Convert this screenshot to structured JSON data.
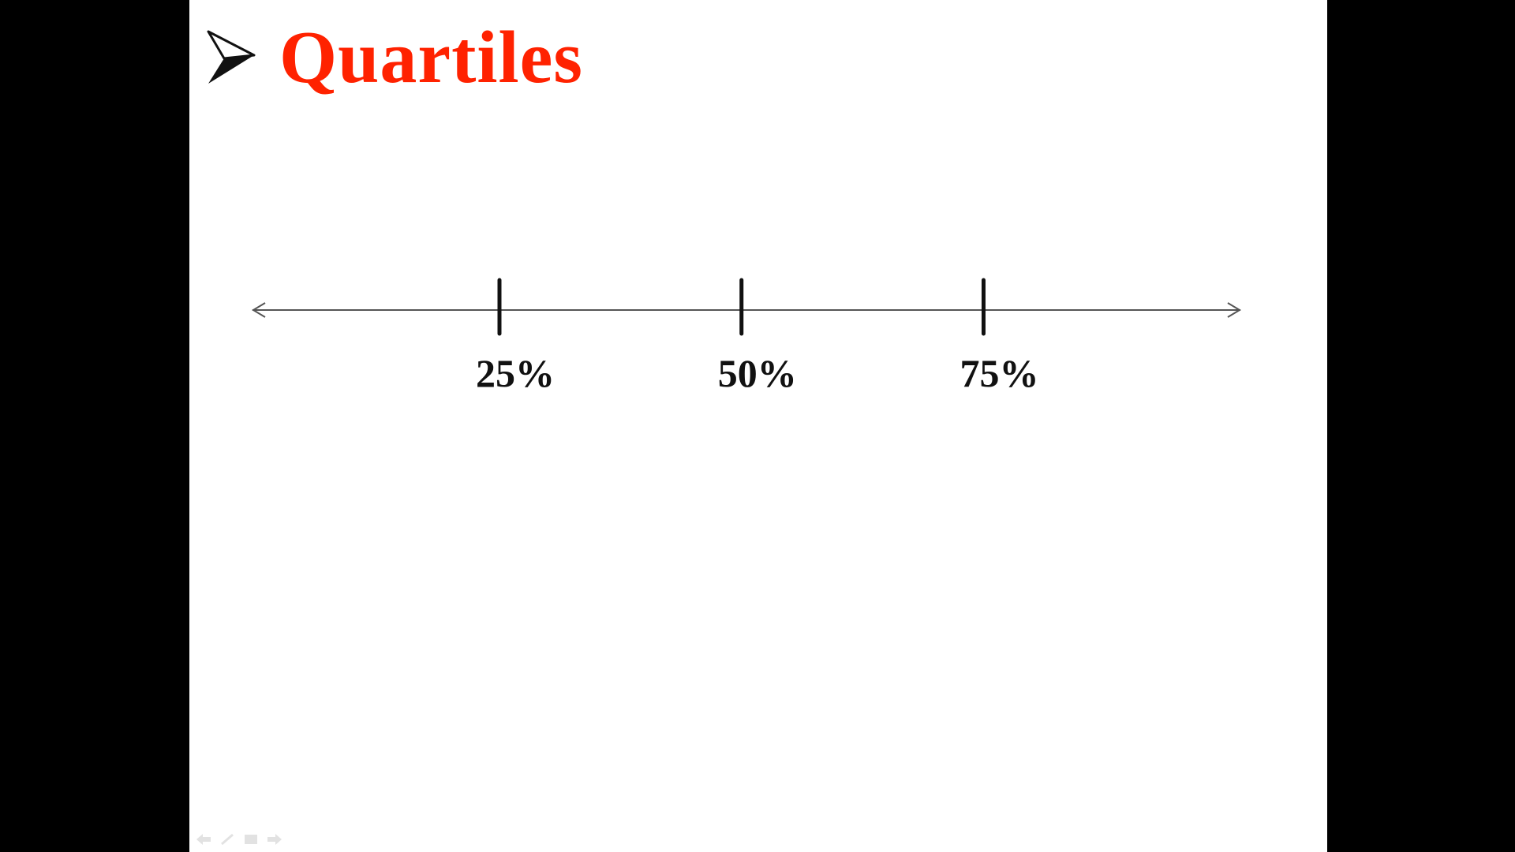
{
  "slide": {
    "title": "Quartiles",
    "bullet_icon": "arrowhead-bullet-icon"
  },
  "number_line": {
    "ticks": [
      {
        "label": "25%",
        "position": 0.25
      },
      {
        "label": "50%",
        "position": 0.5
      },
      {
        "label": "75%",
        "position": 0.75
      }
    ]
  },
  "toolbar": {
    "icons": [
      "previous-icon",
      "pen-icon",
      "menu-icon",
      "next-icon"
    ]
  },
  "colors": {
    "title": "#ff2200",
    "slide_background": "#ffffff",
    "frame_background": "#000000",
    "line": "#555555",
    "tick": "#111111"
  }
}
